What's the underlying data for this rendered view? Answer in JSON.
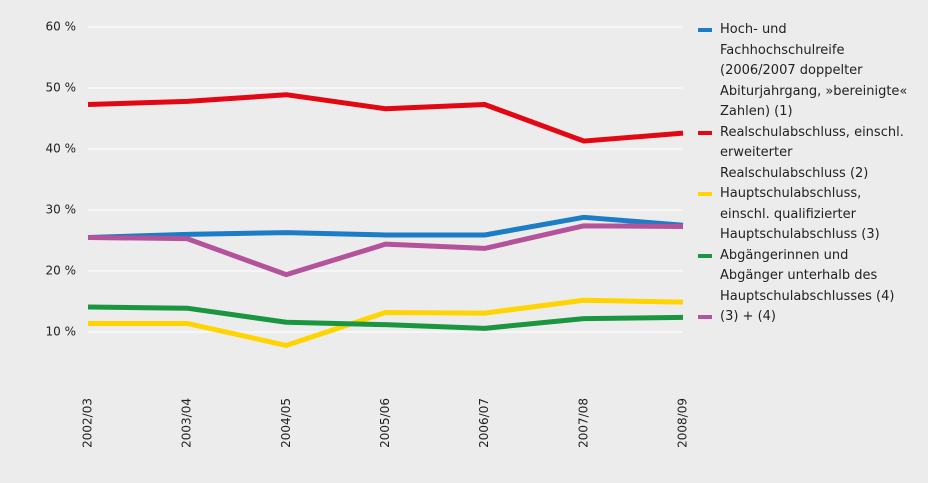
{
  "chart_data": {
    "type": "line",
    "categories": [
      "2002/03",
      "2003/04",
      "2004/05",
      "2005/06",
      "2006/07",
      "2007/08",
      "2008/09"
    ],
    "series": [
      {
        "name": "Hoch- und Fachhochschulreife (2006/2007 doppelter Abiturjahrgang, »bereinigte« Zahlen) (1)",
        "color": "#1a7dc5",
        "values": [
          25.5,
          26,
          26.3,
          25.9,
          25.9,
          28.8,
          27.5
        ]
      },
      {
        "name": "Realschulabschluss, einschl. erweiterter Realschulabschluss (2)",
        "color": "#e30613",
        "values": [
          47.3,
          47.8,
          48.9,
          46.6,
          47.3,
          41.3,
          42.6
        ]
      },
      {
        "name": "Hauptschulabschluss, einschl. qualifizierter Hauptschulabschluss (3)",
        "color": "#ffd400",
        "values": [
          11.4,
          11.4,
          7.8,
          13.2,
          13.1,
          15.2,
          14.9
        ]
      },
      {
        "name": "Abgängerinnen und Abgänger unterhalb des Hauptschulabschlusses (4)",
        "color": "#1a9641",
        "values": [
          14.1,
          13.9,
          11.6,
          11.2,
          10.6,
          12.2,
          12.4
        ]
      },
      {
        "name": "(3) + (4)",
        "color": "#b5529c",
        "values": [
          25.5,
          25.3,
          19.4,
          24.4,
          23.7,
          27.4,
          27.3
        ]
      }
    ],
    "ylim": [
      0,
      60
    ],
    "yticks": [
      {
        "value": 10,
        "label": "10 %"
      },
      {
        "value": 20,
        "label": "20 %"
      },
      {
        "value": 30,
        "label": "30 %"
      },
      {
        "value": 40,
        "label": "40 %"
      },
      {
        "value": 50,
        "label": "50 %"
      },
      {
        "value": 60,
        "label": "60 %"
      }
    ],
    "grid": true
  }
}
